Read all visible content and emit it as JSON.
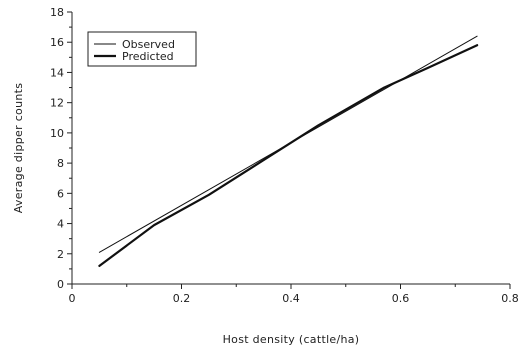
{
  "chart_data": {
    "type": "line",
    "xlabel": "Host density (cattle/ha)",
    "ylabel": "Average dipper counts",
    "xlim": [
      0,
      0.8
    ],
    "ylim": [
      0,
      18
    ],
    "x_ticks": [
      0,
      0.2,
      0.4,
      0.6,
      0.8
    ],
    "x_tick_labels": [
      "0",
      "0.2",
      "0.4",
      "0.6",
      "0.8"
    ],
    "y_ticks": [
      0,
      2,
      4,
      6,
      8,
      10,
      12,
      14,
      16,
      18
    ],
    "y_tick_labels": [
      "0",
      "2",
      "4",
      "6",
      "8",
      "10",
      "12",
      "14",
      "16",
      "18"
    ],
    "grid": false,
    "legend_position": "top-left",
    "series": [
      {
        "name": "Observed",
        "style": "thin",
        "x": [
          0.05,
          0.74
        ],
        "y": [
          2.1,
          16.4
        ]
      },
      {
        "name": "Predicted",
        "style": "thick",
        "x": [
          0.05,
          0.15,
          0.25,
          0.35,
          0.45,
          0.57,
          0.65,
          0.74
        ],
        "y": [
          1.2,
          3.9,
          5.9,
          8.2,
          10.5,
          13.0,
          14.3,
          15.8
        ]
      }
    ]
  }
}
